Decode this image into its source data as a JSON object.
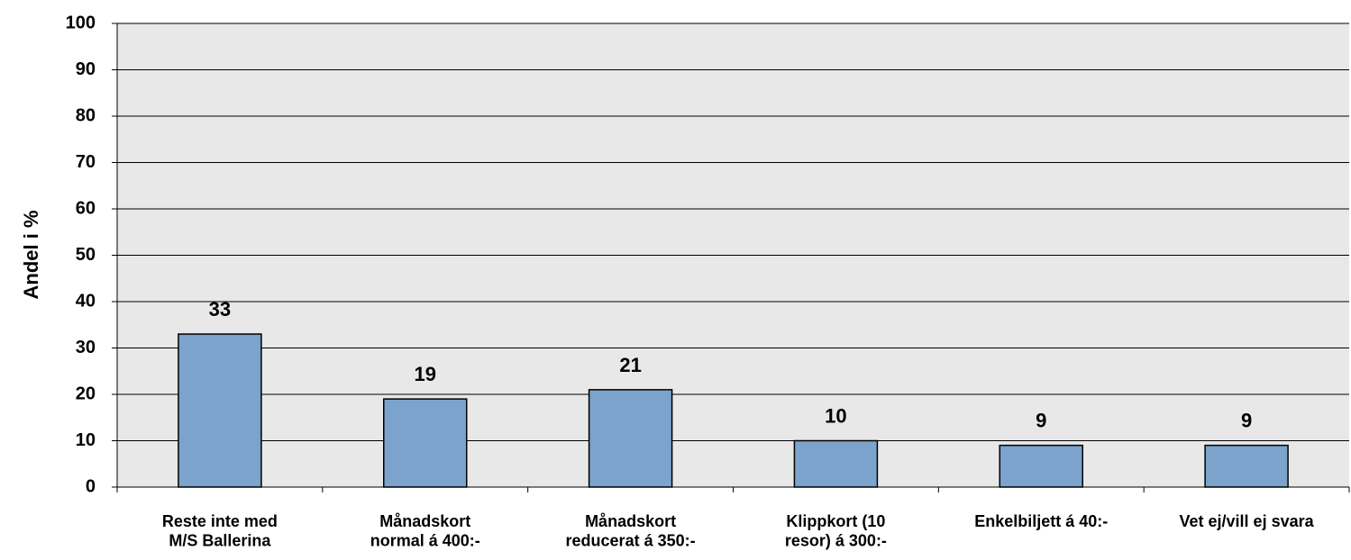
{
  "chart_data": {
    "type": "bar",
    "ylabel": "Andel i %",
    "categories": [
      "Reste inte med\nM/S Ballerina",
      "Månadskort\nnormal á 400:-",
      "Månadskort\nreducerat á 350:-",
      "Klippkort (10\nresor) á 300:-",
      "Enkelbiljett á 40:-",
      "Vet ej/vill ej svara"
    ],
    "values": [
      33,
      19,
      21,
      10,
      9,
      9
    ],
    "color": "#7ba3cb",
    "ylim": [
      0,
      100
    ],
    "yticks": [
      0,
      10,
      20,
      30,
      40,
      50,
      60,
      70,
      80,
      90,
      100
    ],
    "grid": true
  }
}
